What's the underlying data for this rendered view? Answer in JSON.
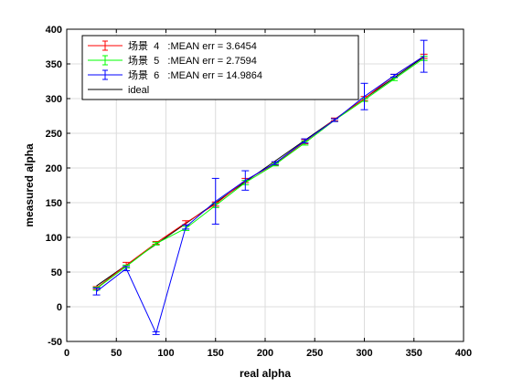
{
  "chart_data": {
    "type": "line",
    "xlabel": "real alpha",
    "ylabel": "measured alpha",
    "xlim": [
      0,
      400
    ],
    "ylim": [
      -50,
      400
    ],
    "xticks": [
      0,
      50,
      100,
      150,
      200,
      250,
      300,
      350,
      400
    ],
    "yticks": [
      -50,
      0,
      50,
      100,
      150,
      200,
      250,
      300,
      350,
      400
    ],
    "grid": true,
    "legend_position": "top-left",
    "series": [
      {
        "name": "场景  4   :MEAN err = 3.6454",
        "color": "#ff0000",
        "error_bars": true,
        "x": [
          30,
          60,
          90,
          120,
          150,
          180,
          210,
          240,
          270,
          300,
          330,
          360
        ],
        "y": [
          27,
          60,
          92,
          121,
          148,
          182,
          206,
          238,
          270,
          300,
          333,
          361
        ],
        "err": [
          2,
          4,
          2,
          3,
          3,
          3,
          2,
          3,
          2,
          3,
          2,
          3
        ]
      },
      {
        "name": "场景  5   :MEAN err = 2.7594",
        "color": "#00ff00",
        "error_bars": true,
        "x": [
          30,
          60,
          90,
          120,
          150,
          180,
          210,
          240,
          270,
          300,
          330,
          360
        ],
        "y": [
          26,
          58,
          91,
          113,
          146,
          179,
          205,
          236,
          269,
          298,
          328,
          358
        ],
        "err": [
          2,
          2,
          2,
          3,
          3,
          3,
          2,
          3,
          2,
          2,
          2,
          3
        ]
      },
      {
        "name": "场景  6   :MEAN err = 14.9864",
        "color": "#0000ff",
        "error_bars": true,
        "x": [
          30,
          60,
          90,
          120,
          150,
          180,
          210,
          240,
          270,
          300,
          330,
          360
        ],
        "y": [
          22,
          55,
          -38,
          115,
          152,
          182,
          207,
          239,
          269,
          303,
          333,
          361
        ],
        "err": [
          5,
          3,
          2,
          3,
          33,
          14,
          2,
          3,
          2,
          19,
          2,
          23
        ]
      },
      {
        "name": "ideal",
        "color": "#000000",
        "error_bars": false,
        "x": [
          30,
          60,
          90,
          120,
          150,
          180,
          210,
          240,
          270,
          300,
          330,
          360
        ],
        "y": [
          30,
          60,
          90,
          120,
          150,
          180,
          210,
          240,
          270,
          300,
          330,
          360
        ],
        "err": []
      }
    ]
  }
}
